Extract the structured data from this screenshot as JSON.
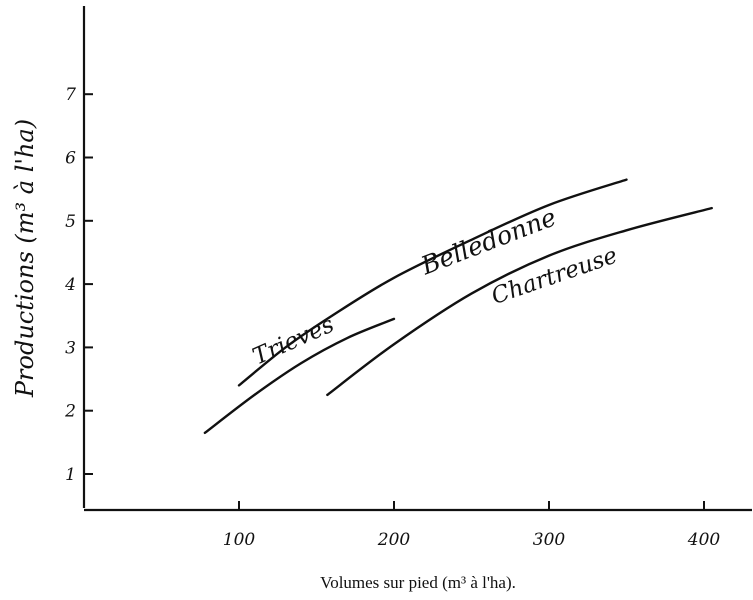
{
  "chart_data": {
    "type": "line",
    "title": "",
    "xlabel": "Volumes sur pied (m³ à l'ha).",
    "ylabel": "Productions (m³ à l'ha)",
    "xlim": [
      0,
      420
    ],
    "ylim": [
      -1.3,
      8.2
    ],
    "xticks": [
      "100",
      "200",
      "300",
      "400"
    ],
    "yticks": [
      "1",
      "2",
      "3",
      "4",
      "5",
      "6",
      "7"
    ],
    "grid": false,
    "legend": "none",
    "series": [
      {
        "name": "Belledonne",
        "x": [
          100,
          130,
          160,
          200,
          250,
          300,
          350
        ],
        "y": [
          2.4,
          3.0,
          3.5,
          4.1,
          4.7,
          5.25,
          5.65
        ]
      },
      {
        "name": "Trieves",
        "x": [
          78,
          110,
          140,
          170,
          200
        ],
        "y": [
          1.65,
          2.25,
          2.75,
          3.15,
          3.45
        ]
      },
      {
        "name": "Chartreuse",
        "x": [
          157,
          200,
          250,
          300,
          350,
          405
        ],
        "y": [
          2.25,
          3.05,
          3.85,
          4.45,
          4.85,
          5.2
        ]
      }
    ]
  }
}
